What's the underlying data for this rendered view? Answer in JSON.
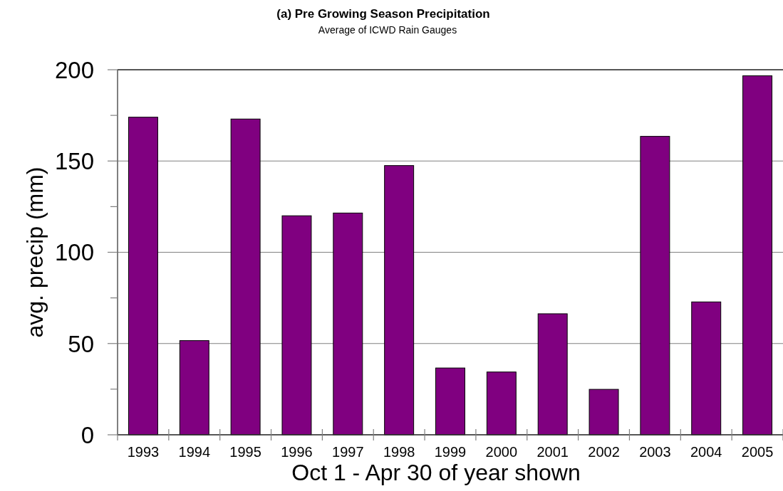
{
  "chart_data": {
    "type": "bar",
    "title": "(a) Pre Growing Season Precipitation",
    "subtitle": "Average of ICWD Rain Gauges",
    "xlabel": "Oct 1 - Apr 30 of year shown",
    "ylabel": "avg. precip (mm)",
    "categories": [
      "1993",
      "1994",
      "1995",
      "1996",
      "1997",
      "1998",
      "1999",
      "2000",
      "2001",
      "2002",
      "2003",
      "2004",
      "2005"
    ],
    "values": [
      174,
      51.6,
      173,
      120,
      121.5,
      147.5,
      36.6,
      34.4,
      66.3,
      24.9,
      163.5,
      72.8,
      196.7
    ],
    "color": "#800080",
    "ylim": [
      0,
      200
    ],
    "yticks": [
      0,
      {
        "value": 25,
        "label": null
      },
      50,
      {
        "value": 75,
        "label": null
      },
      100,
      {
        "value": 125,
        "label": null
      },
      150,
      {
        "value": 175,
        "label": null
      },
      200
    ],
    "grid": "y"
  }
}
